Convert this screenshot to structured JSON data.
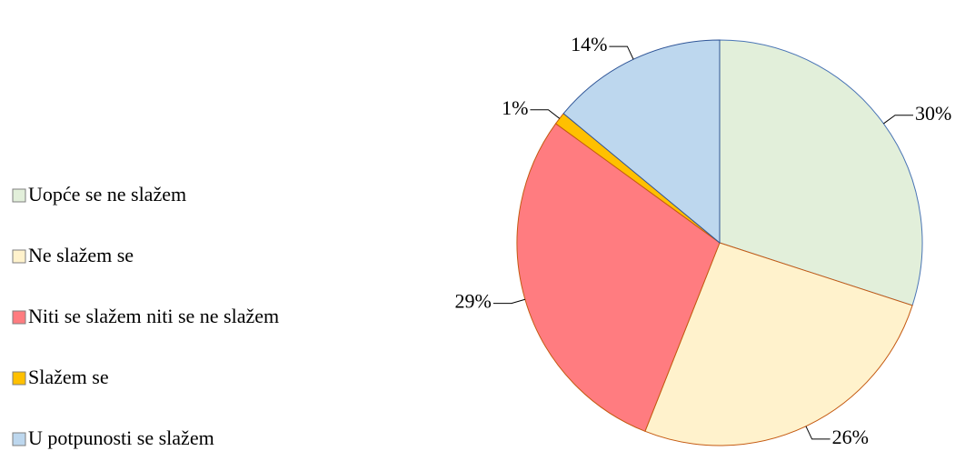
{
  "chart_data": {
    "type": "pie",
    "categories": [
      "Uopće se ne slažem",
      "Ne slažem se",
      "Niti se slažem niti se ne slažem",
      "Slažem se",
      "U potpunosti se slažem"
    ],
    "values": [
      30,
      26,
      29,
      1,
      14
    ],
    "value_labels": [
      "30%",
      "26%",
      "29%",
      "1%",
      "14%"
    ],
    "colors": [
      "#e2efda",
      "#fff2cc",
      "#ff7c80",
      "#ffc000",
      "#bdd7ee"
    ],
    "legend": "left"
  }
}
